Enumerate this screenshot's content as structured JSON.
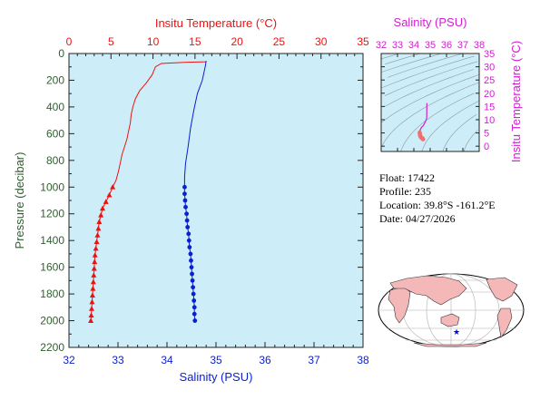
{
  "chart_data": [
    {
      "type": "line",
      "top_axis_label": "Insitu Temperature (°C)",
      "bottom_axis_label": "Salinity (PSU)",
      "left_axis_label": "Pressure (decibar)",
      "temperature_ticks": [
        "0",
        "5",
        "10",
        "15",
        "20",
        "25",
        "30",
        "35"
      ],
      "salinity_ticks": [
        "32",
        "33",
        "34",
        "35",
        "36",
        "37",
        "38"
      ],
      "pressure_ticks": [
        "0",
        "200",
        "400",
        "600",
        "800",
        "1000",
        "1200",
        "1400",
        "1600",
        "1800",
        "2000",
        "2200"
      ],
      "xlim_temperature": [
        0,
        35
      ],
      "xlim_salinity": [
        32,
        38
      ],
      "ylim_pressure": [
        2200,
        0
      ],
      "background": "#cdeef8",
      "series": [
        {
          "quantity": "temperature",
          "color": "#ee1111",
          "points": [
            [
              16.3,
              56
            ],
            [
              16.3,
              62
            ],
            [
              14.0,
              65
            ],
            [
              11.0,
              75
            ],
            [
              10.3,
              100
            ],
            [
              9.9,
              160
            ],
            [
              9.2,
              220
            ],
            [
              8.4,
              280
            ],
            [
              7.9,
              340
            ],
            [
              7.6,
              400
            ],
            [
              7.4,
              460
            ],
            [
              7.3,
              520
            ],
            [
              7.1,
              580
            ],
            [
              6.9,
              640
            ],
            [
              6.6,
              700
            ],
            [
              6.3,
              760
            ],
            [
              6.1,
              820
            ],
            [
              5.9,
              880
            ],
            [
              5.6,
              950
            ],
            [
              5.2,
              1000
            ],
            [
              4.8,
              1060
            ],
            [
              4.4,
              1110
            ],
            [
              4.0,
              1160
            ],
            [
              3.8,
              1210
            ],
            [
              3.6,
              1260
            ],
            [
              3.5,
              1310
            ],
            [
              3.4,
              1360
            ],
            [
              3.3,
              1410
            ],
            [
              3.2,
              1460
            ],
            [
              3.1,
              1510
            ],
            [
              3.05,
              1560
            ],
            [
              3.0,
              1610
            ],
            [
              2.95,
              1660
            ],
            [
              2.9,
              1710
            ],
            [
              2.85,
              1760
            ],
            [
              2.8,
              1810
            ],
            [
              2.75,
              1860
            ],
            [
              2.7,
              1910
            ],
            [
              2.65,
              1960
            ],
            [
              2.6,
              2000
            ]
          ]
        },
        {
          "quantity": "salinity",
          "color": "#0a1ed2",
          "points": [
            [
              34.8,
              56
            ],
            [
              34.78,
              100
            ],
            [
              34.72,
              200
            ],
            [
              34.62,
              300
            ],
            [
              34.55,
              420
            ],
            [
              34.48,
              560
            ],
            [
              34.43,
              700
            ],
            [
              34.38,
              820
            ],
            [
              34.36,
              920
            ],
            [
              34.36,
              1000
            ],
            [
              34.36,
              1050
            ],
            [
              34.37,
              1100
            ],
            [
              34.38,
              1150
            ],
            [
              34.4,
              1200
            ],
            [
              34.41,
              1250
            ],
            [
              34.42,
              1300
            ],
            [
              34.44,
              1350
            ],
            [
              34.45,
              1400
            ],
            [
              34.46,
              1450
            ],
            [
              34.48,
              1500
            ],
            [
              34.49,
              1550
            ],
            [
              34.5,
              1600
            ],
            [
              34.51,
              1650
            ],
            [
              34.52,
              1700
            ],
            [
              34.53,
              1750
            ],
            [
              34.54,
              1800
            ],
            [
              34.55,
              1850
            ],
            [
              34.56,
              1900
            ],
            [
              34.56,
              1950
            ],
            [
              34.57,
              2000
            ]
          ]
        }
      ]
    },
    {
      "type": "scatter",
      "top_axis_label": "Salinity (PSU)",
      "right_axis_label": "Insitu Temperature (°C)",
      "salinity_ticks": [
        "32",
        "33",
        "34",
        "35",
        "36",
        "37",
        "38"
      ],
      "temperature_ticks": [
        "0",
        "5",
        "10",
        "15",
        "20",
        "25",
        "30",
        "35"
      ],
      "xlim_salinity": [
        32,
        38
      ],
      "ylim_temperature": [
        -2,
        35
      ],
      "color": "#d020d0",
      "deep_color": "#f07070"
    }
  ],
  "float_info": {
    "float_line": "Float:  17422",
    "profile_line": "Profile:  235",
    "location_line": "Location:  39.8°S  -161.2°E",
    "date_line": "Date:  04/27/2026"
  },
  "map": {
    "marker_symbol": "★",
    "marker_color": "#0000ee"
  }
}
